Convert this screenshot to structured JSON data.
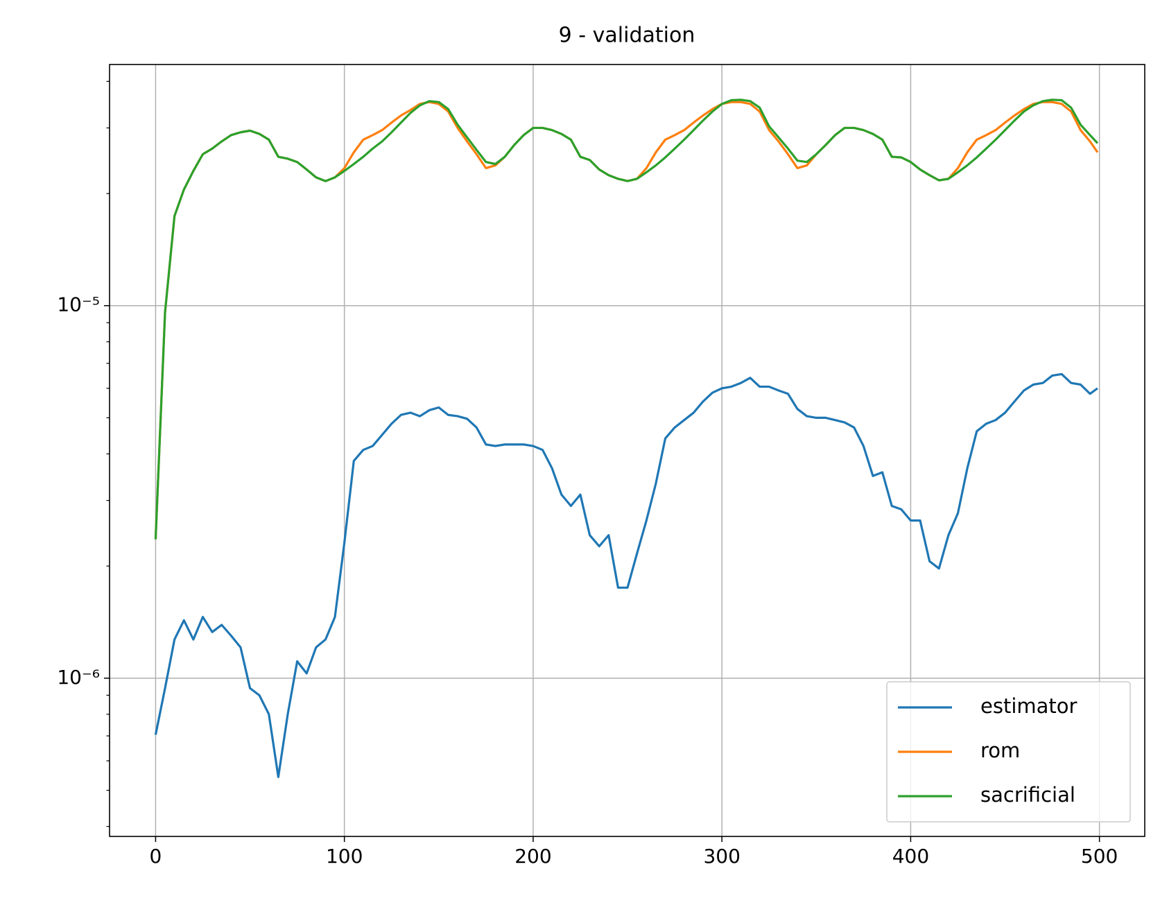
{
  "chart_data": {
    "type": "line",
    "title": "9 - validation",
    "yscale": "log",
    "grid": true,
    "legend": "lower right",
    "xlim": [
      -24.4,
      524
    ],
    "ylim": [
      3.76e-07,
      4.44e-05
    ],
    "xticks": [
      0,
      100,
      200,
      300,
      400,
      500
    ],
    "yticks": [
      {
        "value": 1e-06,
        "label": "10⁻⁶"
      },
      {
        "value": 1e-05,
        "label": "10⁻⁵"
      }
    ],
    "yminorticks": [
      4e-07,
      5e-07,
      6e-07,
      7e-07,
      8e-07,
      9e-07,
      2e-06,
      3e-06,
      4e-06,
      5e-06,
      6e-06,
      7e-06,
      8e-06,
      9e-06,
      2e-05,
      3e-05,
      4e-05
    ],
    "x": [
      0,
      5,
      10,
      15,
      20,
      25,
      30,
      35,
      40,
      45,
      50,
      55,
      60,
      65,
      70,
      75,
      80,
      85,
      90,
      95,
      100,
      105,
      110,
      115,
      120,
      125,
      130,
      135,
      140,
      145,
      150,
      155,
      160,
      165,
      170,
      175,
      180,
      185,
      190,
      195,
      200,
      205,
      210,
      215,
      220,
      225,
      230,
      235,
      240,
      245,
      250,
      255,
      260,
      265,
      270,
      275,
      280,
      285,
      290,
      295,
      300,
      305,
      310,
      315,
      320,
      325,
      330,
      335,
      340,
      345,
      350,
      355,
      360,
      365,
      370,
      375,
      380,
      385,
      390,
      395,
      400,
      405,
      410,
      415,
      420,
      425,
      430,
      435,
      440,
      445,
      450,
      455,
      460,
      465,
      470,
      475,
      480,
      485,
      490,
      495,
      499
    ],
    "series": [
      {
        "name": "estimator",
        "color": "#1f77b4",
        "values": [
          7.05e-07,
          9.4e-07,
          1.27e-06,
          1.43e-06,
          1.27e-06,
          1.46e-06,
          1.33e-06,
          1.39e-06,
          1.3e-06,
          1.21e-06,
          9.4e-07,
          8.99e-07,
          8e-07,
          5.43e-07,
          8e-07,
          1.11e-06,
          1.03e-06,
          1.21e-06,
          1.27e-06,
          1.46e-06,
          2.31e-06,
          3.83e-06,
          4.1e-06,
          4.2e-06,
          4.5e-06,
          4.82e-06,
          5.09e-06,
          5.16e-06,
          5.05e-06,
          5.24e-06,
          5.33e-06,
          5.09e-06,
          5.05e-06,
          4.97e-06,
          4.71e-06,
          4.24e-06,
          4.2e-06,
          4.24e-06,
          4.24e-06,
          4.24e-06,
          4.2e-06,
          4.1e-06,
          3.66e-06,
          3.11e-06,
          2.9e-06,
          3.11e-06,
          2.42e-06,
          2.26e-06,
          2.42e-06,
          1.75e-06,
          1.75e-06,
          2.16e-06,
          2.65e-06,
          3.33e-06,
          4.4e-06,
          4.71e-06,
          4.93e-06,
          5.16e-06,
          5.53e-06,
          5.84e-06,
          6e-06,
          6.06e-06,
          6.2e-06,
          6.4e-06,
          6.06e-06,
          6.06e-06,
          5.92e-06,
          5.8e-06,
          5.28e-06,
          5.05e-06,
          5e-06,
          5e-06,
          4.93e-06,
          4.86e-06,
          4.71e-06,
          4.2e-06,
          3.49e-06,
          3.57e-06,
          2.9e-06,
          2.84e-06,
          2.65e-06,
          2.65e-06,
          2.06e-06,
          1.97e-06,
          2.42e-06,
          2.77e-06,
          3.66e-06,
          4.6e-06,
          4.82e-06,
          4.93e-06,
          5.16e-06,
          5.53e-06,
          5.92e-06,
          6.14e-06,
          6.2e-06,
          6.49e-06,
          6.55e-06,
          6.2e-06,
          6.14e-06,
          5.8e-06,
          6e-06
        ]
      },
      {
        "name": "rom",
        "color": "#ff7f0e",
        "values": [
          2.36e-06,
          9.6e-06,
          1.74e-05,
          2.05e-05,
          2.3e-05,
          2.55e-05,
          2.64e-05,
          2.76e-05,
          2.87e-05,
          2.92e-05,
          2.95e-05,
          2.89e-05,
          2.79e-05,
          2.51e-05,
          2.48e-05,
          2.43e-05,
          2.32e-05,
          2.21e-05,
          2.16e-05,
          2.21e-05,
          2.34e-05,
          2.58e-05,
          2.79e-05,
          2.87e-05,
          2.96e-05,
          3.1e-05,
          3.24e-05,
          3.35e-05,
          3.48e-05,
          3.52e-05,
          3.48e-05,
          3.32e-05,
          3e-05,
          2.76e-05,
          2.55e-05,
          2.34e-05,
          2.38e-05,
          2.51e-05,
          2.7e-05,
          2.87e-05,
          3e-05,
          3e-05,
          2.96e-05,
          2.89e-05,
          2.79e-05,
          2.51e-05,
          2.46e-05,
          2.32e-05,
          2.24e-05,
          2.19e-05,
          2.16e-05,
          2.19e-05,
          2.34e-05,
          2.58e-05,
          2.79e-05,
          2.87e-05,
          2.96e-05,
          3.1e-05,
          3.24e-05,
          3.37e-05,
          3.48e-05,
          3.52e-05,
          3.52e-05,
          3.48e-05,
          3.32e-05,
          2.96e-05,
          2.76e-05,
          2.55e-05,
          2.34e-05,
          2.38e-05,
          2.55e-05,
          2.7e-05,
          2.87e-05,
          3e-05,
          3e-05,
          2.96e-05,
          2.89e-05,
          2.79e-05,
          2.51e-05,
          2.5e-05,
          2.43e-05,
          2.32e-05,
          2.24e-05,
          2.17e-05,
          2.19e-05,
          2.34e-05,
          2.58e-05,
          2.79e-05,
          2.87e-05,
          2.96e-05,
          3.1e-05,
          3.24e-05,
          3.37e-05,
          3.48e-05,
          3.52e-05,
          3.52e-05,
          3.48e-05,
          3.32e-05,
          2.96e-05,
          2.76e-05,
          2.58e-05
        ]
      },
      {
        "name": "sacrificial",
        "color": "#2ca02c",
        "values": [
          2.36e-06,
          9.6e-06,
          1.74e-05,
          2.05e-05,
          2.3e-05,
          2.55e-05,
          2.64e-05,
          2.76e-05,
          2.87e-05,
          2.92e-05,
          2.95e-05,
          2.89e-05,
          2.79e-05,
          2.51e-05,
          2.48e-05,
          2.43e-05,
          2.32e-05,
          2.21e-05,
          2.16e-05,
          2.21e-05,
          2.3e-05,
          2.4e-05,
          2.51e-05,
          2.64e-05,
          2.76e-05,
          2.92e-05,
          3.1e-05,
          3.29e-05,
          3.45e-05,
          3.54e-05,
          3.52e-05,
          3.37e-05,
          3.06e-05,
          2.83e-05,
          2.62e-05,
          2.43e-05,
          2.4e-05,
          2.51e-05,
          2.7e-05,
          2.87e-05,
          3e-05,
          3e-05,
          2.96e-05,
          2.89e-05,
          2.79e-05,
          2.51e-05,
          2.46e-05,
          2.32e-05,
          2.24e-05,
          2.19e-05,
          2.16e-05,
          2.19e-05,
          2.28e-05,
          2.38e-05,
          2.5e-05,
          2.64e-05,
          2.79e-05,
          2.96e-05,
          3.14e-05,
          3.32e-05,
          3.48e-05,
          3.56e-05,
          3.57e-05,
          3.54e-05,
          3.4e-05,
          3.03e-05,
          2.83e-05,
          2.64e-05,
          2.45e-05,
          2.43e-05,
          2.55e-05,
          2.7e-05,
          2.87e-05,
          3e-05,
          3e-05,
          2.96e-05,
          2.89e-05,
          2.79e-05,
          2.51e-05,
          2.5e-05,
          2.43e-05,
          2.32e-05,
          2.24e-05,
          2.17e-05,
          2.19e-05,
          2.28e-05,
          2.38e-05,
          2.5e-05,
          2.64e-05,
          2.79e-05,
          2.96e-05,
          3.14e-05,
          3.32e-05,
          3.45e-05,
          3.54e-05,
          3.57e-05,
          3.56e-05,
          3.4e-05,
          3.06e-05,
          2.87e-05,
          2.73e-05
        ]
      }
    ]
  }
}
